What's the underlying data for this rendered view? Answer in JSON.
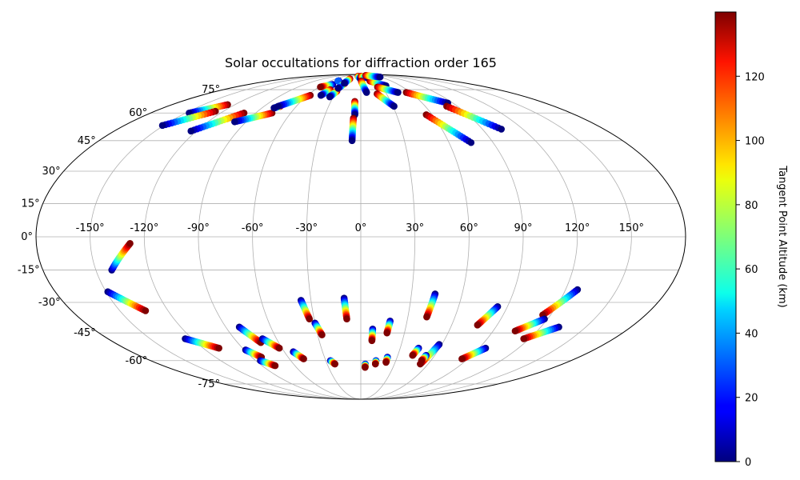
{
  "chart_data": {
    "type": "scatter",
    "projection": "mollweide",
    "title": "Solar occultations for diffraction order 165",
    "colorbar": {
      "label": "Tangent Point Altitude (km)",
      "colormap": "jet",
      "range": [
        0,
        140
      ],
      "ticks": [
        0,
        20,
        40,
        60,
        80,
        100,
        120
      ],
      "tick_labels": [
        "0",
        "20",
        "40",
        "60",
        "80",
        "100",
        "120"
      ]
    },
    "x_ticks": [
      -150,
      -120,
      -90,
      -60,
      -30,
      0,
      30,
      60,
      90,
      120,
      150
    ],
    "x_tick_labels": [
      "-150°",
      "-120°",
      "-90°",
      "-60°",
      "-30°",
      "0°",
      "30°",
      "60°",
      "90°",
      "120°",
      "150°"
    ],
    "y_ticks": [
      75,
      60,
      45,
      30,
      15,
      0,
      -15,
      -30,
      -45,
      -60,
      -75
    ],
    "y_tick_labels": [
      "75°",
      "60°",
      "45°",
      "30°",
      "15°",
      "0°",
      "-15°",
      "-30°",
      "-45°",
      "-60°",
      "-75°"
    ],
    "grid": true,
    "tracks": [
      {
        "lon_start": -127,
        "lat_start": 65,
        "lon_end": -147,
        "lat_end": 60,
        "alt_start": 140,
        "alt_end": 0
      },
      {
        "lon_start": -127,
        "lat_start": 61,
        "lon_end": -151,
        "lat_end": 53,
        "alt_start": 140,
        "alt_end": 0
      },
      {
        "lon_start": -100,
        "lat_start": 60,
        "lon_end": -124,
        "lat_end": 50,
        "alt_start": 140,
        "alt_end": 0
      },
      {
        "lon_start": -76,
        "lat_start": 60,
        "lon_end": -99,
        "lat_end": 55,
        "alt_start": 140,
        "alt_end": 0
      },
      {
        "lon_start": -75,
        "lat_start": 64,
        "lon_end": -79,
        "lat_end": 63,
        "alt_start": 140,
        "alt_end": 0
      },
      {
        "lon_start": -57,
        "lat_start": 71,
        "lon_end": -77,
        "lat_end": 64,
        "alt_start": 140,
        "alt_end": 0
      },
      {
        "lon_start": -45,
        "lat_start": 79,
        "lon_end": -58,
        "lat_end": 77,
        "alt_start": 0,
        "alt_end": 140
      },
      {
        "lon_start": -40,
        "lat_start": 75,
        "lon_end": -45,
        "lat_end": 71,
        "alt_start": 140,
        "alt_end": 0
      },
      {
        "lon_start": -43,
        "lat_start": 82,
        "lon_end": -45,
        "lat_end": 82,
        "alt_start": 0,
        "alt_end": 30
      },
      {
        "lon_start": -30,
        "lat_start": 74,
        "lon_end": -34,
        "lat_end": 70,
        "alt_start": 140,
        "alt_end": 0
      },
      {
        "lon_start": -27,
        "lat_start": 80,
        "lon_end": -31,
        "lat_end": 76,
        "alt_start": 140,
        "alt_end": 0
      },
      {
        "lon_start": -26,
        "lat_start": 84,
        "lon_end": -28,
        "lat_end": 80,
        "alt_start": 140,
        "alt_end": 0
      },
      {
        "lon_start": -6,
        "lat_start": 67,
        "lon_end": -5,
        "lat_end": 59,
        "alt_start": 140,
        "alt_end": 0
      },
      {
        "lon_start": -6,
        "lat_start": 57,
        "lon_end": -6,
        "lat_end": 45,
        "alt_start": 140,
        "alt_end": 0
      },
      {
        "lon_start": -10,
        "lat_start": 87,
        "lon_end": 0,
        "lat_end": 84,
        "alt_start": 140,
        "alt_end": 0
      },
      {
        "lon_start": 1,
        "lat_start": 87,
        "lon_end": 20,
        "lat_end": 85,
        "alt_start": 140,
        "alt_end": 0
      },
      {
        "lon_start": 1,
        "lat_start": 82,
        "lon_end": 7,
        "lat_end": 73,
        "alt_start": 140,
        "alt_end": 0
      },
      {
        "lon_start": 18,
        "lat_start": 82,
        "lon_end": 38,
        "lat_end": 78,
        "alt_start": 140,
        "alt_end": 0
      },
      {
        "lon_start": 24,
        "lat_start": 88,
        "lon_end": 60,
        "lat_end": 86,
        "alt_start": 140,
        "alt_end": 0
      },
      {
        "lon_start": 24,
        "lat_start": 77,
        "lon_end": 45,
        "lat_end": 73,
        "alt_start": 140,
        "alt_end": 0
      },
      {
        "lon_start": 19,
        "lat_start": 72,
        "lon_end": 31,
        "lat_end": 64,
        "alt_start": 140,
        "alt_end": 0
      },
      {
        "lon_start": 55,
        "lat_start": 73,
        "lon_end": 85,
        "lat_end": 66,
        "alt_start": 140,
        "alt_end": 0
      },
      {
        "lon_start": 80,
        "lat_start": 64,
        "lon_end": 104,
        "lat_end": 51,
        "alt_start": 140,
        "alt_end": 0
      },
      {
        "lon_start": 55,
        "lat_start": 59,
        "lon_end": 75,
        "lat_end": 44,
        "alt_start": 140,
        "alt_end": 0
      },
      {
        "lon_start": -141,
        "lat_start": -15,
        "lon_end": -128,
        "lat_end": -3,
        "alt_start": 0,
        "alt_end": 140
      },
      {
        "lon_start": -149,
        "lat_start": -25,
        "lon_end": -134,
        "lat_end": -34,
        "alt_start": 0,
        "alt_end": 140
      },
      {
        "lon_start": -125,
        "lat_start": -48,
        "lon_end": -108,
        "lat_end": -53,
        "alt_start": 0,
        "alt_end": 140
      },
      {
        "lon_start": -81,
        "lat_start": -42,
        "lon_end": -73,
        "lat_end": -50,
        "alt_start": 0,
        "alt_end": 140
      },
      {
        "lon_start": -70,
        "lat_start": -48,
        "lon_end": -62,
        "lat_end": -53,
        "alt_start": 0,
        "alt_end": 140
      },
      {
        "lon_start": -89,
        "lat_start": -54,
        "lon_end": -82,
        "lat_end": -58,
        "alt_start": 0,
        "alt_end": 140
      },
      {
        "lon_start": -86,
        "lat_start": -60,
        "lon_end": -78,
        "lat_end": -63,
        "alt_start": 0,
        "alt_end": 140
      },
      {
        "lon_start": -53,
        "lat_start": -55,
        "lon_end": -48,
        "lat_end": -59,
        "alt_start": 0,
        "alt_end": 140
      },
      {
        "lon_start": -26,
        "lat_start": -60,
        "lon_end": -23,
        "lat_end": -62,
        "alt_start": 0,
        "alt_end": 140
      },
      {
        "lon_start": -36,
        "lat_start": -29,
        "lon_end": -33,
        "lat_end": -38,
        "alt_start": 0,
        "alt_end": 140
      },
      {
        "lon_start": -30,
        "lat_start": -40,
        "lon_end": -27,
        "lat_end": -46,
        "alt_start": 0,
        "alt_end": 140
      },
      {
        "lon_start": -10,
        "lat_start": -28,
        "lon_end": -9,
        "lat_end": -38,
        "alt_start": 0,
        "alt_end": 140
      },
      {
        "lon_start": 8,
        "lat_start": -43,
        "lon_end": 8,
        "lat_end": -49,
        "alt_start": 0,
        "alt_end": 140
      },
      {
        "lon_start": 19,
        "lat_start": -39,
        "lon_end": 18,
        "lat_end": -45,
        "alt_start": 0,
        "alt_end": 140
      },
      {
        "lon_start": 4,
        "lat_start": -62,
        "lon_end": 4,
        "lat_end": -64,
        "alt_start": 0,
        "alt_end": 140
      },
      {
        "lon_start": 13,
        "lat_start": -60,
        "lon_end": 13,
        "lat_end": -62,
        "alt_start": 0,
        "alt_end": 140
      },
      {
        "lon_start": 22,
        "lat_start": -58,
        "lon_end": 22,
        "lat_end": -61,
        "alt_start": 0,
        "alt_end": 140
      },
      {
        "lon_start": 44,
        "lat_start": -26,
        "lon_end": 42,
        "lat_end": -37,
        "alt_start": 0,
        "alt_end": 140
      },
      {
        "lon_start": 44,
        "lat_start": -53,
        "lon_end": 42,
        "lat_end": -57,
        "alt_start": 0,
        "alt_end": 140
      },
      {
        "lon_start": 58,
        "lat_start": -51,
        "lon_end": 53,
        "lat_end": -62,
        "alt_start": 0,
        "alt_end": 140
      },
      {
        "lon_start": 53,
        "lat_start": -57,
        "lon_end": 52,
        "lat_end": -60,
        "alt_start": 0,
        "alt_end": 140
      },
      {
        "lon_start": 84,
        "lat_start": -32,
        "lon_end": 77,
        "lat_end": -41,
        "alt_start": 0,
        "alt_end": 140
      },
      {
        "lon_start": 95,
        "lat_start": -53,
        "lon_end": 85,
        "lat_end": -59,
        "alt_start": 0,
        "alt_end": 140
      },
      {
        "lon_start": 127,
        "lat_start": -24,
        "lon_end": 115,
        "lat_end": -36,
        "alt_start": 0,
        "alt_end": 140
      },
      {
        "lon_start": 118,
        "lat_start": -38,
        "lon_end": 105,
        "lat_end": -44,
        "alt_start": 0,
        "alt_end": 140
      },
      {
        "lon_start": 132,
        "lat_start": -42,
        "lon_end": 116,
        "lat_end": -48,
        "alt_start": 0,
        "alt_end": 140
      }
    ]
  }
}
